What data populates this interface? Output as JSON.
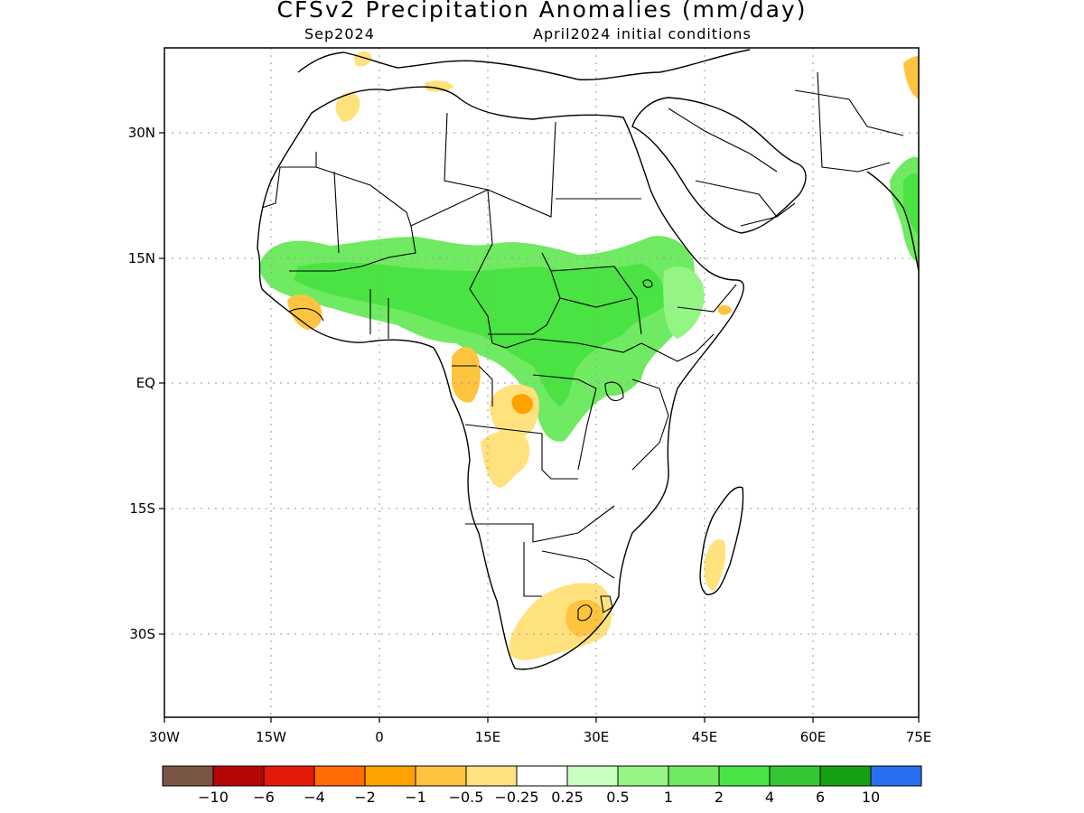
{
  "title": "CFSv2 Precipitation Anomalies (mm/day)",
  "subtitle_left": "Sep2024",
  "subtitle_right": "April2024 initial conditions",
  "map": {
    "lon_range": [
      -30,
      75
    ],
    "lat_range": [
      -40,
      41
    ],
    "grid": "dotted",
    "lon_ticks": [
      "30W",
      "15W",
      "0",
      "15E",
      "30E",
      "45E",
      "60E",
      "75E"
    ],
    "lat_ticks": [
      "30N",
      "15N",
      "EQ",
      "15S",
      "30S"
    ]
  },
  "colorbar": {
    "colors": [
      "#7a5546",
      "#b60606",
      "#e41a0b",
      "#ff6b04",
      "#ffa200",
      "#ffc43f",
      "#ffe27d",
      "#ffffff",
      "#c9ffc0",
      "#94f584",
      "#70ea62",
      "#4be343",
      "#34c734",
      "#14a014",
      "#2a6ef0"
    ],
    "labels": [
      "−10",
      "−6",
      "−4",
      "−2",
      "−1",
      "−0.5",
      "−0.25",
      "0.25",
      "0.5",
      "1",
      "2",
      "4",
      "6",
      "10"
    ]
  },
  "anomaly_regions": [
    {
      "name": "sahel-wet",
      "color": "#70ea62"
    },
    {
      "name": "central-africa-wet",
      "color": "#70ea62"
    },
    {
      "name": "india-wet",
      "color": "#70ea62"
    },
    {
      "name": "gabon-dry",
      "color": "#ffc43f"
    },
    {
      "name": "angola-dry",
      "color": "#ffe27d"
    },
    {
      "name": "south-africa-dry",
      "color": "#ffe27d"
    },
    {
      "name": "madagascar-dry",
      "color": "#ffe27d"
    },
    {
      "name": "west-africa-dry",
      "color": "#ffc43f"
    }
  ]
}
